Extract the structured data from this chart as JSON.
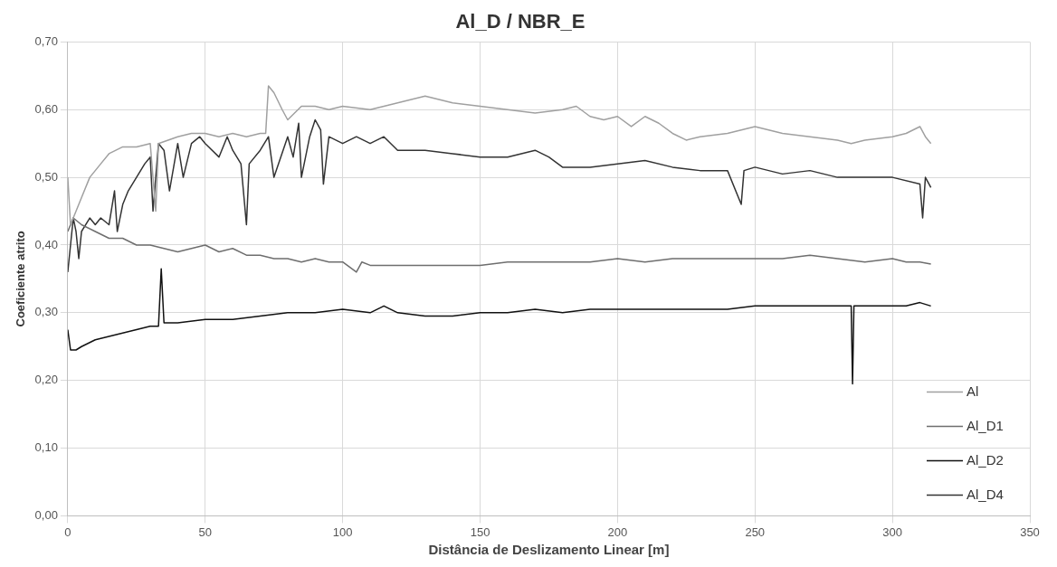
{
  "chart_data": {
    "type": "line",
    "title": "Al_D / NBR_E",
    "xlabel": "Distância de Deslizamento Linear [m]",
    "ylabel": "Coeficiente atrito",
    "xlim": [
      0,
      350
    ],
    "xticks": [
      0,
      50,
      100,
      150,
      200,
      250,
      300,
      350
    ],
    "ylim": [
      0,
      0.7
    ],
    "yticks": [
      {
        "value": 0,
        "label": "0,00"
      },
      {
        "value": 0.1,
        "label": "0,10"
      },
      {
        "value": 0.2,
        "label": "0,20"
      },
      {
        "value": 0.3,
        "label": "0,30"
      },
      {
        "value": 0.4,
        "label": "0,40"
      },
      {
        "value": 0.5,
        "label": "0,50"
      },
      {
        "value": 0.6,
        "label": "0,60"
      },
      {
        "value": 0.7,
        "label": "0,70"
      }
    ],
    "grid": true,
    "legend": "bottom right",
    "marker": "none",
    "line_style": "solid",
    "series": [
      {
        "name": "Al",
        "color": "#a0a0a0",
        "x": [
          0,
          1,
          3,
          5,
          8,
          12,
          15,
          20,
          25,
          30,
          32,
          33,
          40,
          45,
          50,
          55,
          60,
          65,
          70,
          72,
          73,
          75,
          78,
          80,
          85,
          90,
          95,
          100,
          110,
          120,
          130,
          135,
          140,
          150,
          160,
          170,
          180,
          185,
          190,
          195,
          200,
          205,
          210,
          215,
          220,
          225,
          230,
          240,
          250,
          255,
          260,
          270,
          280,
          285,
          290,
          300,
          305,
          310,
          312,
          314
        ],
        "values": [
          0.5,
          0.43,
          0.45,
          0.47,
          0.5,
          0.52,
          0.535,
          0.545,
          0.545,
          0.55,
          0.45,
          0.55,
          0.56,
          0.565,
          0.565,
          0.56,
          0.565,
          0.56,
          0.565,
          0.565,
          0.635,
          0.625,
          0.6,
          0.585,
          0.605,
          0.605,
          0.6,
          0.605,
          0.6,
          0.61,
          0.62,
          0.615,
          0.61,
          0.605,
          0.6,
          0.595,
          0.6,
          0.605,
          0.59,
          0.585,
          0.59,
          0.575,
          0.59,
          0.58,
          0.565,
          0.555,
          0.56,
          0.565,
          0.575,
          0.57,
          0.565,
          0.56,
          0.555,
          0.55,
          0.555,
          0.56,
          0.565,
          0.575,
          0.56,
          0.55
        ]
      },
      {
        "name": "Al_D1",
        "color": "#6e6e6e",
        "x": [
          0,
          2,
          5,
          10,
          15,
          20,
          25,
          30,
          35,
          40,
          45,
          50,
          55,
          60,
          65,
          70,
          75,
          80,
          85,
          90,
          95,
          100,
          105,
          107,
          110,
          120,
          130,
          140,
          150,
          160,
          170,
          180,
          190,
          200,
          210,
          220,
          230,
          240,
          250,
          260,
          270,
          280,
          290,
          300,
          305,
          310,
          314
        ],
        "values": [
          0.42,
          0.44,
          0.43,
          0.42,
          0.41,
          0.41,
          0.4,
          0.4,
          0.395,
          0.39,
          0.395,
          0.4,
          0.39,
          0.395,
          0.385,
          0.385,
          0.38,
          0.38,
          0.375,
          0.38,
          0.375,
          0.375,
          0.36,
          0.375,
          0.37,
          0.37,
          0.37,
          0.37,
          0.37,
          0.375,
          0.375,
          0.375,
          0.375,
          0.38,
          0.375,
          0.38,
          0.38,
          0.38,
          0.38,
          0.38,
          0.385,
          0.38,
          0.375,
          0.38,
          0.375,
          0.375,
          0.372
        ]
      },
      {
        "name": "Al_D2",
        "color": "#111111",
        "x": [
          0,
          1,
          3,
          5,
          10,
          15,
          20,
          25,
          30,
          33,
          34,
          35,
          40,
          50,
          60,
          70,
          80,
          90,
          100,
          110,
          115,
          120,
          130,
          140,
          150,
          160,
          170,
          180,
          190,
          200,
          210,
          220,
          230,
          240,
          250,
          260,
          270,
          280,
          285,
          285.5,
          286,
          290,
          300,
          305,
          310,
          314
        ],
        "values": [
          0.275,
          0.245,
          0.245,
          0.25,
          0.26,
          0.265,
          0.27,
          0.275,
          0.28,
          0.28,
          0.365,
          0.285,
          0.285,
          0.29,
          0.29,
          0.295,
          0.3,
          0.3,
          0.305,
          0.3,
          0.31,
          0.3,
          0.295,
          0.295,
          0.3,
          0.3,
          0.305,
          0.3,
          0.305,
          0.305,
          0.305,
          0.305,
          0.305,
          0.305,
          0.31,
          0.31,
          0.31,
          0.31,
          0.31,
          0.195,
          0.31,
          0.31,
          0.31,
          0.31,
          0.315,
          0.31
        ]
      },
      {
        "name": "Al_D4",
        "color": "#333333",
        "x": [
          0,
          1,
          2,
          3,
          4,
          5,
          8,
          10,
          12,
          15,
          17,
          18,
          20,
          22,
          25,
          28,
          30,
          31,
          33,
          35,
          37,
          40,
          42,
          45,
          48,
          50,
          55,
          58,
          60,
          63,
          65,
          66,
          70,
          73,
          75,
          80,
          82,
          84,
          85,
          88,
          90,
          92,
          93,
          95,
          100,
          105,
          110,
          115,
          120,
          130,
          140,
          150,
          160,
          170,
          175,
          180,
          190,
          200,
          210,
          220,
          230,
          240,
          245,
          246,
          250,
          260,
          270,
          280,
          290,
          300,
          310,
          311,
          312,
          314
        ],
        "values": [
          0.36,
          0.4,
          0.44,
          0.42,
          0.38,
          0.42,
          0.44,
          0.43,
          0.44,
          0.43,
          0.48,
          0.42,
          0.46,
          0.48,
          0.5,
          0.52,
          0.53,
          0.45,
          0.55,
          0.54,
          0.48,
          0.55,
          0.5,
          0.55,
          0.56,
          0.55,
          0.53,
          0.56,
          0.54,
          0.52,
          0.43,
          0.52,
          0.54,
          0.56,
          0.5,
          0.56,
          0.53,
          0.58,
          0.5,
          0.56,
          0.585,
          0.57,
          0.49,
          0.56,
          0.55,
          0.56,
          0.55,
          0.56,
          0.54,
          0.54,
          0.535,
          0.53,
          0.53,
          0.54,
          0.53,
          0.515,
          0.515,
          0.52,
          0.525,
          0.515,
          0.51,
          0.51,
          0.46,
          0.51,
          0.515,
          0.505,
          0.51,
          0.5,
          0.5,
          0.5,
          0.49,
          0.44,
          0.5,
          0.485
        ]
      }
    ]
  }
}
